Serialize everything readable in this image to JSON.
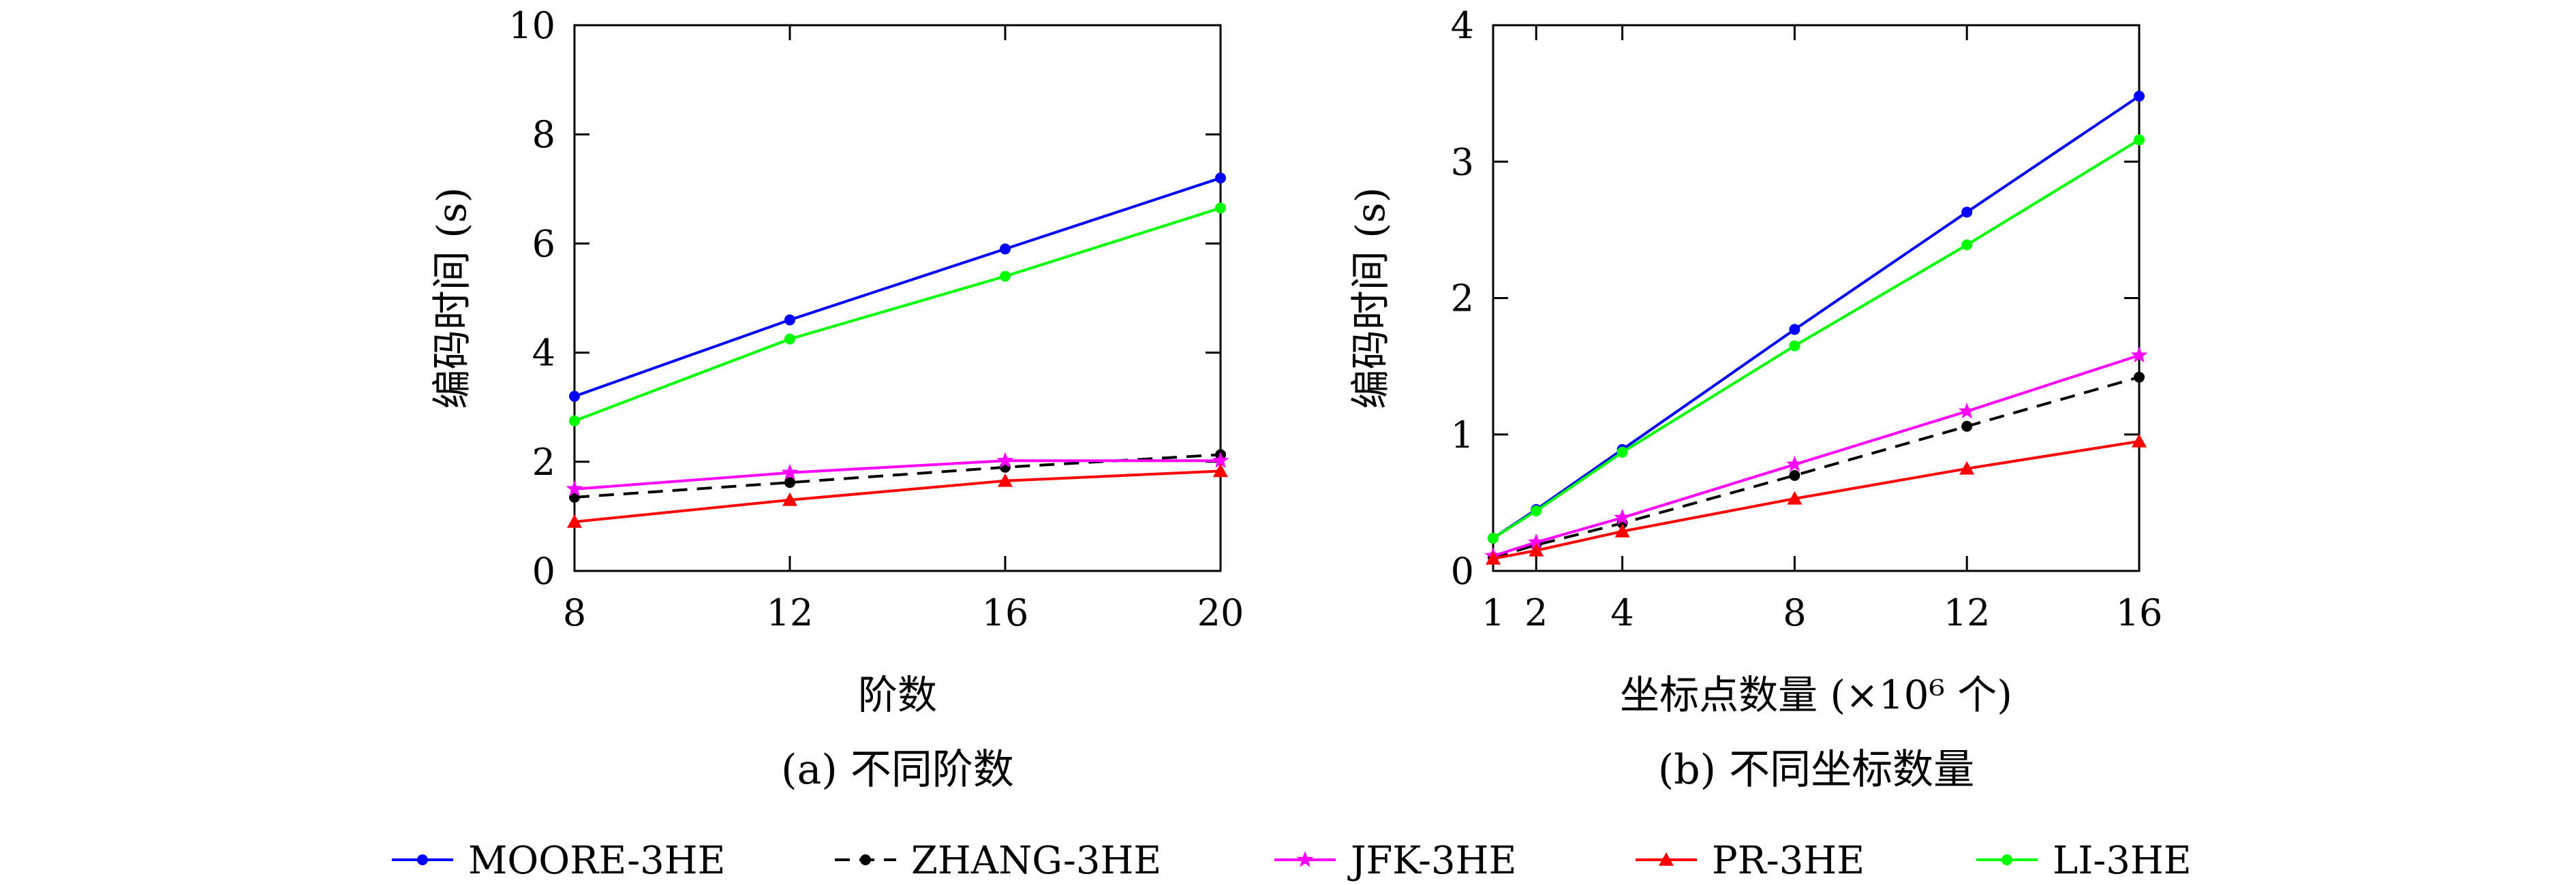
{
  "legend": [
    {
      "name": "MOORE-3HE",
      "color": "#0000ff",
      "marker": "circle",
      "dash": "solid"
    },
    {
      "name": "ZHANG-3HE",
      "color": "#000000",
      "marker": "circle",
      "dash": "dashed"
    },
    {
      "name": "JFK-3HE",
      "color": "#ff00ff",
      "marker": "star",
      "dash": "solid"
    },
    {
      "name": "PR-3HE",
      "color": "#ff0000",
      "marker": "triangle",
      "dash": "solid"
    },
    {
      "name": "LI-3HE",
      "color": "#00ff00",
      "marker": "circle",
      "dash": "solid"
    }
  ],
  "chart_data": [
    {
      "type": "line",
      "caption": "(a) 不同阶数",
      "xlabel": "阶数",
      "ylabel": "编码时间 (s)",
      "x": [
        8,
        12,
        16,
        20
      ],
      "xticks": [
        "8",
        "12",
        "16",
        "20"
      ],
      "xlim": [
        8,
        20
      ],
      "yticks": [
        "0",
        "2",
        "4",
        "6",
        "8",
        "10"
      ],
      "ylim": [
        0,
        10
      ],
      "grid": false,
      "series": [
        {
          "name": "MOORE-3HE",
          "values": [
            3.2,
            4.6,
            5.9,
            7.2
          ]
        },
        {
          "name": "ZHANG-3HE",
          "values": [
            1.35,
            1.62,
            1.9,
            2.13
          ]
        },
        {
          "name": "JFK-3HE",
          "values": [
            1.5,
            1.8,
            2.02,
            2.02
          ]
        },
        {
          "name": "PR-3HE",
          "values": [
            0.9,
            1.3,
            1.65,
            1.83
          ]
        },
        {
          "name": "LI-3HE",
          "values": [
            2.75,
            4.25,
            5.4,
            6.65
          ]
        }
      ]
    },
    {
      "type": "line",
      "caption": "(b) 不同坐标数量",
      "xlabel": "坐标点数量 (×10⁶ 个)",
      "ylabel": "编码时间 (s)",
      "x": [
        1,
        2,
        4,
        8,
        12,
        16
      ],
      "xticks": [
        "1",
        "2",
        "4",
        "8",
        "12",
        "16"
      ],
      "xlim": [
        1,
        16
      ],
      "yticks": [
        "0",
        "1",
        "2",
        "3",
        "4"
      ],
      "ylim": [
        0,
        4
      ],
      "grid": false,
      "series": [
        {
          "name": "MOORE-3HE",
          "values": [
            0.24,
            0.45,
            0.89,
            1.77,
            2.63,
            3.48
          ]
        },
        {
          "name": "ZHANG-3HE",
          "values": [
            0.1,
            0.19,
            0.35,
            0.7,
            1.06,
            1.42
          ]
        },
        {
          "name": "JFK-3HE",
          "values": [
            0.11,
            0.21,
            0.39,
            0.78,
            1.17,
            1.58
          ]
        },
        {
          "name": "PR-3HE",
          "values": [
            0.09,
            0.15,
            0.29,
            0.53,
            0.75,
            0.95
          ]
        },
        {
          "name": "LI-3HE",
          "values": [
            0.24,
            0.44,
            0.87,
            1.65,
            2.39,
            3.16
          ]
        }
      ]
    }
  ]
}
